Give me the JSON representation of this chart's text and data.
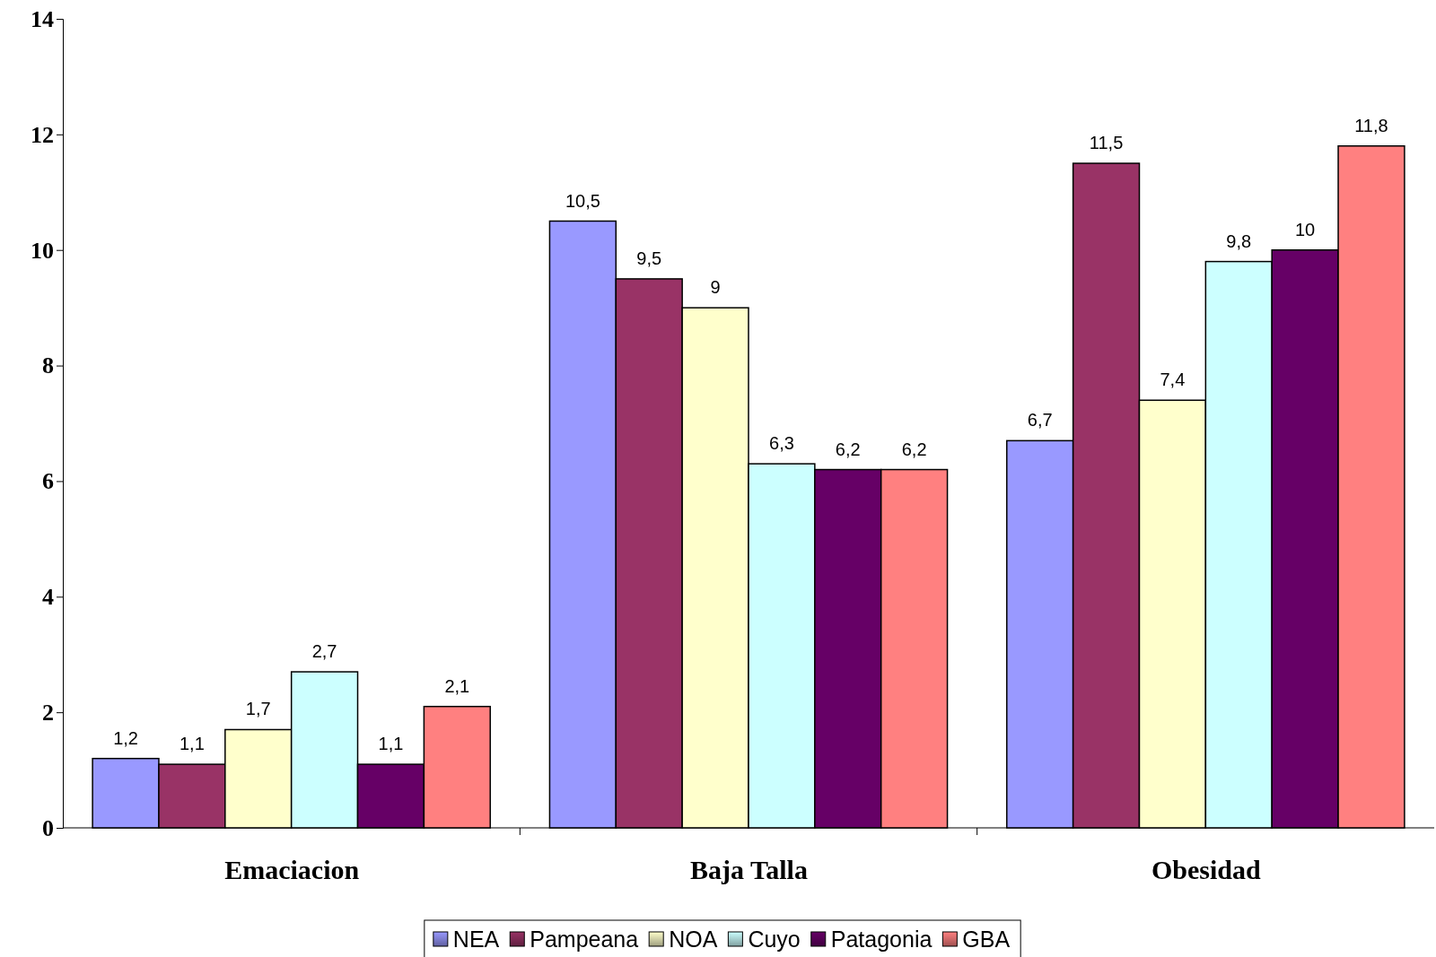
{
  "chart_data": {
    "type": "bar",
    "categories": [
      "Emaciacion",
      "Baja Talla",
      "Obesidad"
    ],
    "series": [
      {
        "name": "NEA",
        "color": "#9999ff",
        "values": [
          1.2,
          10.5,
          6.7
        ]
      },
      {
        "name": "Pampeana",
        "color": "#993366",
        "values": [
          1.1,
          9.5,
          11.5
        ]
      },
      {
        "name": "NOA",
        "color": "#ffffcc",
        "values": [
          1.7,
          9,
          7.4
        ]
      },
      {
        "name": "Cuyo",
        "color": "#ccffff",
        "values": [
          2.7,
          6.3,
          9.8
        ]
      },
      {
        "name": "Patagonia",
        "color": "#660066",
        "values": [
          1.1,
          6.2,
          10
        ]
      },
      {
        "name": "GBA",
        "color": "#ff8080",
        "values": [
          2.1,
          6.2,
          11.8
        ]
      }
    ],
    "value_labels": [
      [
        "1,2",
        "10,5",
        "6,7"
      ],
      [
        "1,1",
        "9,5",
        "11,5"
      ],
      [
        "1,7",
        "9",
        "7,4"
      ],
      [
        "2,7",
        "6,3",
        "9,8"
      ],
      [
        "1,1",
        "6,2",
        "10"
      ],
      [
        "2,1",
        "6,2",
        "11,8"
      ]
    ],
    "ylim": [
      0,
      14
    ],
    "yticks": [
      0,
      2,
      4,
      6,
      8,
      10,
      12,
      14
    ],
    "grid": false,
    "legend": "bottom"
  }
}
